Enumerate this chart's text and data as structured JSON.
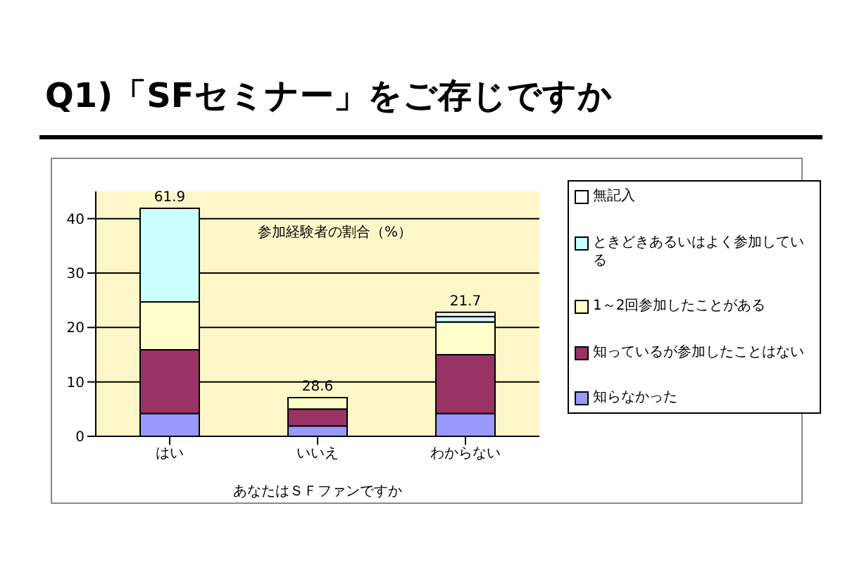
{
  "chart_data": {
    "type": "bar",
    "title": "Q1)「SFセミナー」をご存じですか",
    "xlabel": "あなたはＳＦファンですか",
    "categories": [
      "はい",
      "いいえ",
      "わからない"
    ],
    "stacked": true,
    "series": [
      {
        "name": "知らなかった",
        "color": "#9999ff",
        "values": [
          4.2,
          1.9,
          4.2
        ]
      },
      {
        "name": "知っているが参加したことはない",
        "color": "#993366",
        "values": [
          11.7,
          3.1,
          10.8
        ]
      },
      {
        "name": "1～2回参加したことがある",
        "color": "#ffffcc",
        "values": [
          8.8,
          2.1,
          6.0
        ]
      },
      {
        "name": "ときどきあるいはよく参加している",
        "color": "#ccffff",
        "values": [
          17.2,
          0,
          1.0
        ]
      },
      {
        "name": "無記入",
        "color": "#ffffff",
        "values": [
          0,
          0,
          0.8
        ]
      }
    ],
    "ylim": [
      0,
      45
    ],
    "yticks": [
      0,
      10,
      20,
      30,
      40
    ],
    "grid": "y",
    "legend": "right",
    "annotations": [
      "参加経験者の割合（%）",
      {
        "text": "61.9",
        "x": "はい",
        "y": 41.9
      },
      {
        "text": "28.6",
        "x": "いいえ",
        "y": 7.1
      },
      {
        "text": "21.7",
        "x": "わからない",
        "y": 22.8
      }
    ]
  }
}
